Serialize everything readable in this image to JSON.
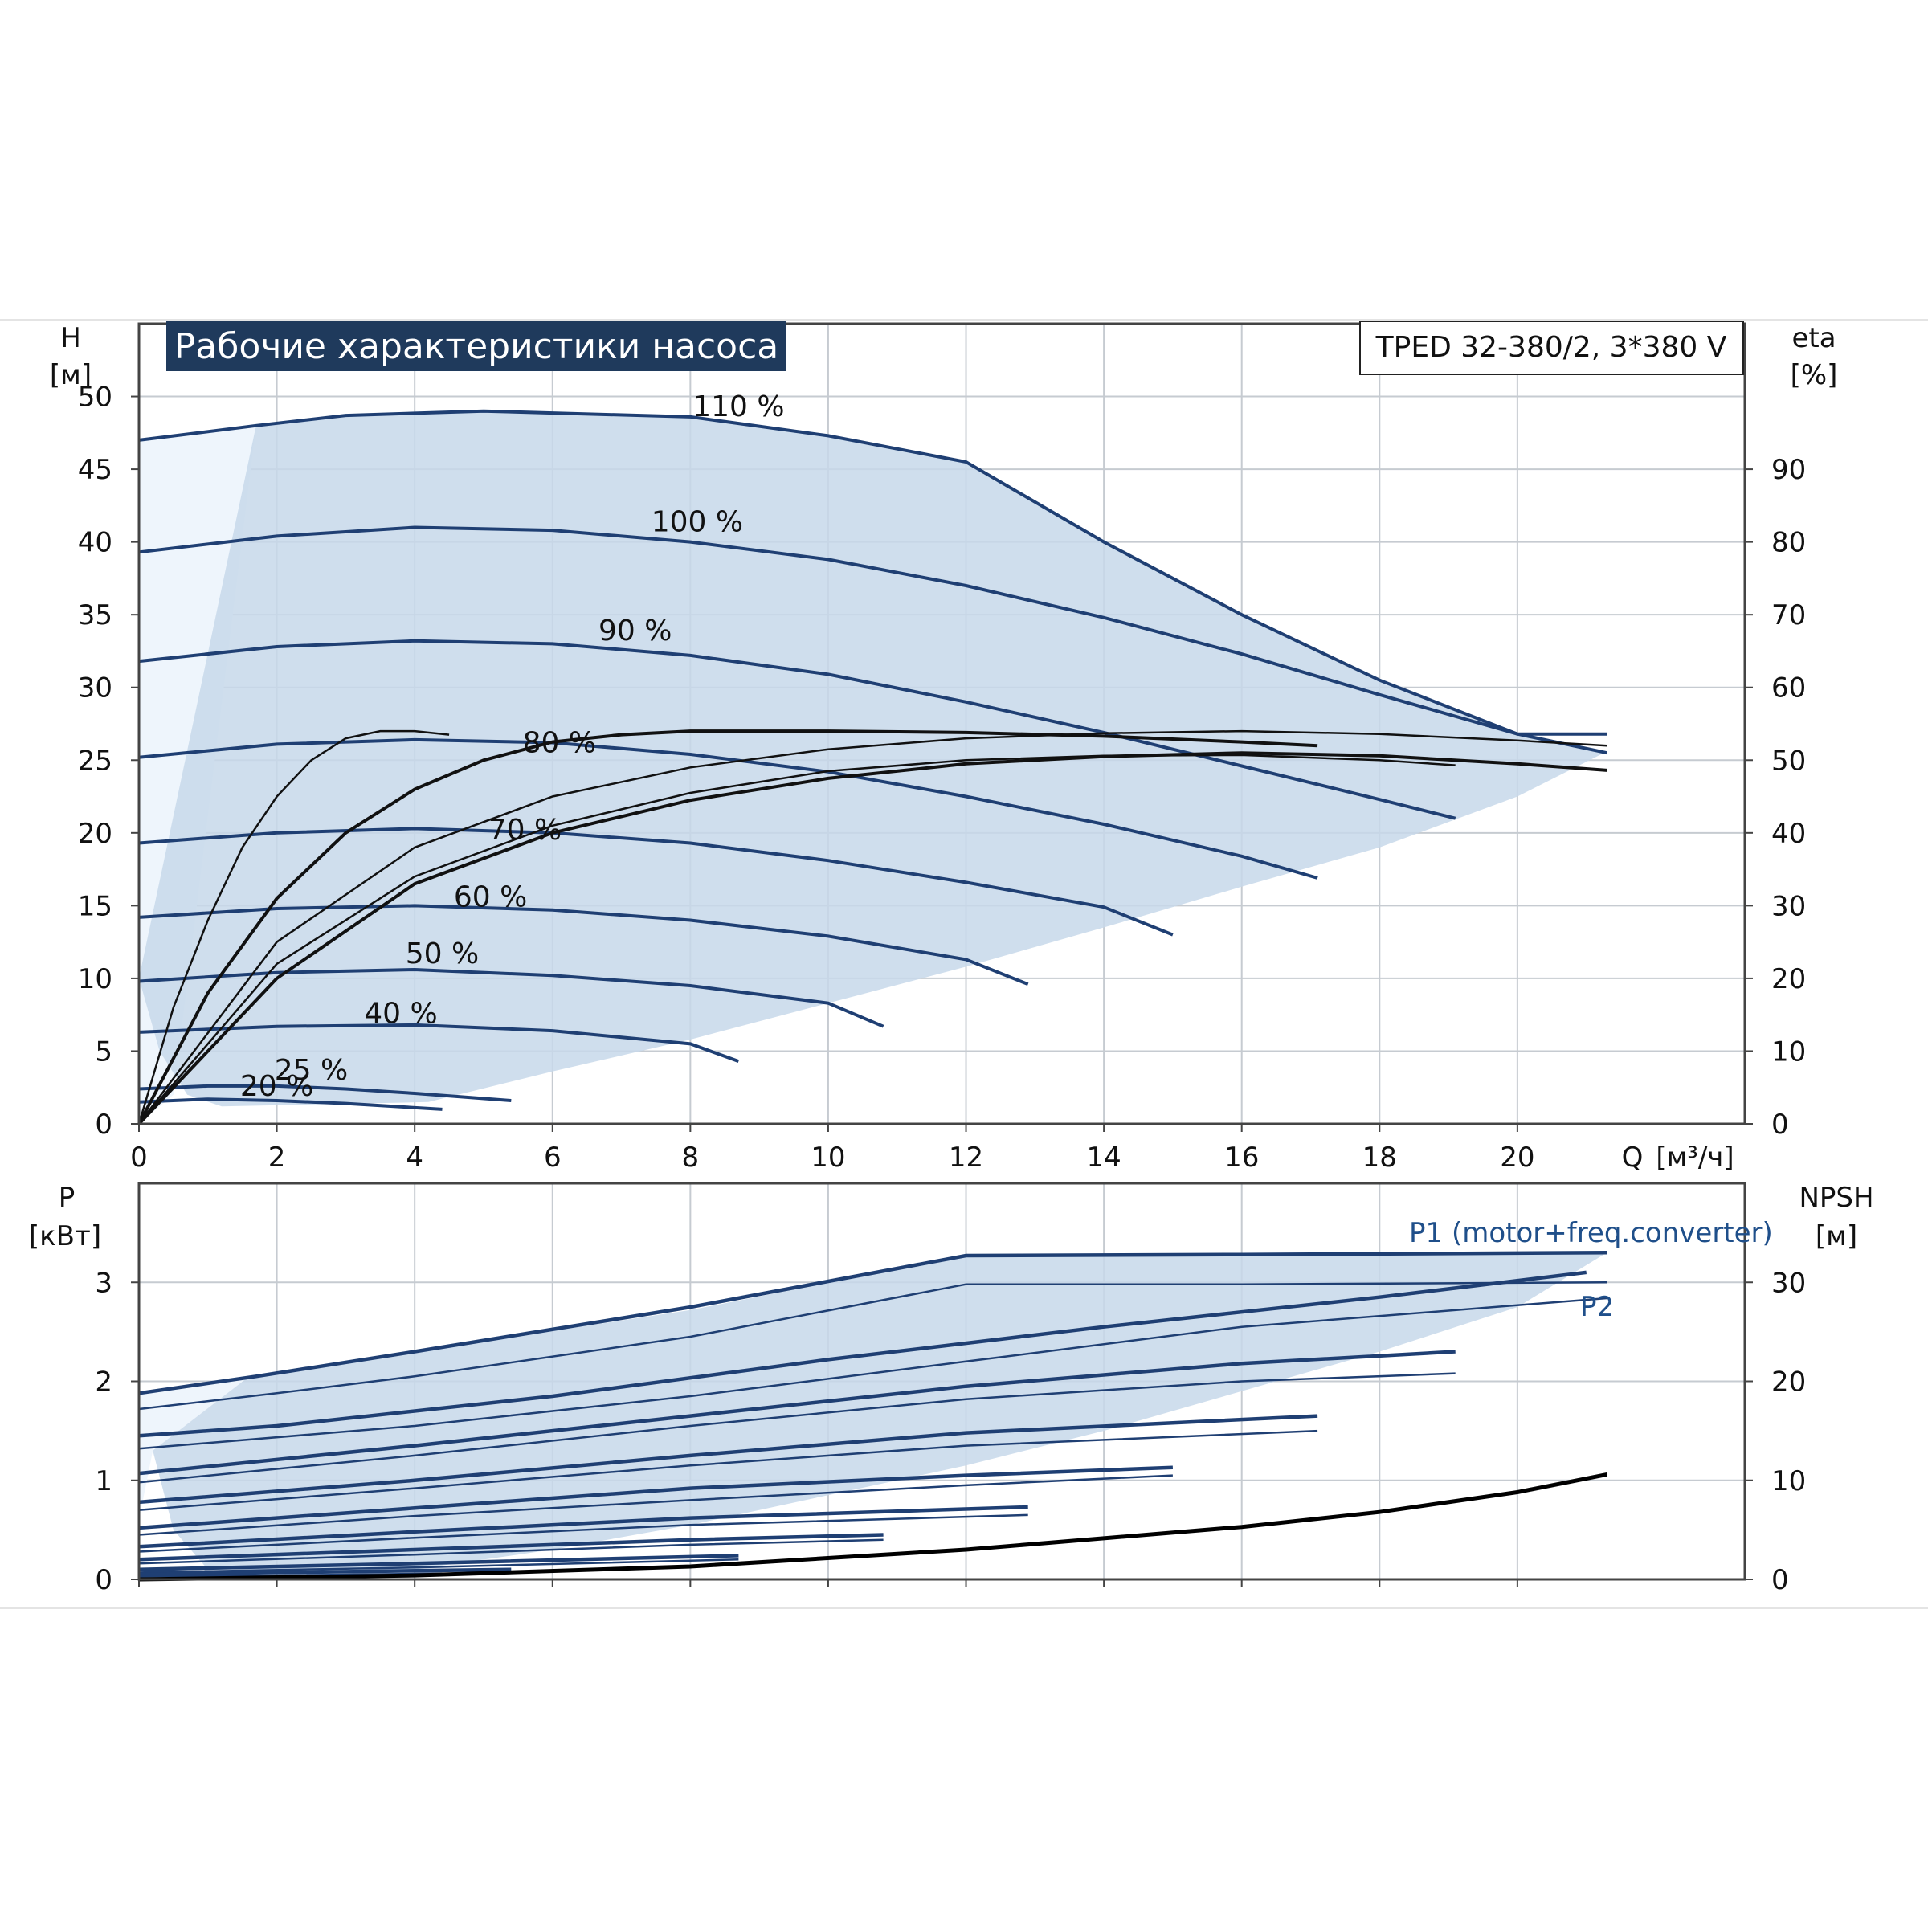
{
  "chart_data": [
    {
      "type": "line",
      "title": "Рабочие характеристики насоса",
      "model_label": "TPED 32-380/2, 3*380 V",
      "ylabel": "H",
      "ylabel_unit": "[м]",
      "y2label": "eta",
      "y2label_unit": "[%]",
      "xlabel": "Q",
      "xlabel_unit": "[м³/ч]",
      "xlim": [
        0,
        23.3
      ],
      "ylim": [
        0,
        55
      ],
      "y2lim": [
        0,
        110
      ],
      "xticks": [
        "0",
        "2",
        "4",
        "6",
        "8",
        "10",
        "12",
        "14",
        "16",
        "18",
        "20"
      ],
      "yticks": [
        "0",
        "5",
        "10",
        "15",
        "20",
        "25",
        "30",
        "35",
        "40",
        "45",
        "50"
      ],
      "y2ticks": [
        "0",
        "10",
        "20",
        "30",
        "40",
        "50",
        "60",
        "70",
        "80",
        "90"
      ],
      "grid": true,
      "operating_range": {
        "upper": [
          [
            1.7,
            48
          ],
          [
            3,
            48.7
          ],
          [
            5,
            49
          ],
          [
            8,
            48.6
          ],
          [
            10,
            47.3
          ],
          [
            12,
            45.5
          ],
          [
            14,
            40
          ],
          [
            16,
            35
          ],
          [
            18,
            30.5
          ],
          [
            20,
            26.8
          ],
          [
            21.3,
            25.6
          ]
        ],
        "lower": [
          [
            21.3,
            25.6
          ],
          [
            20,
            22.5
          ],
          [
            18,
            19
          ],
          [
            16,
            16.3
          ],
          [
            14,
            13.5
          ],
          [
            12,
            10.8
          ],
          [
            10,
            8.3
          ],
          [
            8,
            5.8
          ],
          [
            6,
            3.6
          ],
          [
            4.2,
            1.5
          ],
          [
            1.2,
            1.2
          ],
          [
            0.7,
            2
          ],
          [
            0.3,
            5
          ],
          [
            0,
            10
          ]
        ]
      },
      "head_curves": [
        {
          "label": "110 %",
          "q": [
            0,
            1.7,
            3,
            5,
            8,
            10,
            12,
            14,
            16,
            18,
            20,
            21.3
          ],
          "h": [
            47,
            48,
            48.7,
            49,
            48.6,
            47.3,
            45.5,
            40,
            35,
            30.5,
            26.8,
            26.8
          ]
        },
        {
          "label": "100 %",
          "q": [
            0,
            2,
            4,
            6,
            8,
            10,
            12,
            14,
            16,
            18,
            20,
            21.3
          ],
          "h": [
            39.3,
            40.4,
            41,
            40.8,
            40,
            38.8,
            37,
            34.8,
            32.3,
            29.5,
            26.8,
            25.5
          ]
        },
        {
          "label": "90 %",
          "q": [
            0,
            2,
            4,
            6,
            8,
            10,
            12,
            14,
            16,
            18,
            19.1
          ],
          "h": [
            31.8,
            32.8,
            33.2,
            33,
            32.2,
            30.9,
            29,
            26.9,
            24.6,
            22.3,
            21
          ]
        },
        {
          "label": "80 %",
          "q": [
            0,
            2,
            4,
            6,
            8,
            10,
            12,
            14,
            16,
            17.1
          ],
          "h": [
            25.2,
            26.1,
            26.4,
            26.2,
            25.4,
            24.2,
            22.5,
            20.6,
            18.4,
            16.9
          ]
        },
        {
          "label": "70 %",
          "q": [
            0,
            2,
            4,
            6,
            8,
            10,
            12,
            14,
            15
          ],
          "h": [
            19.3,
            20,
            20.3,
            20,
            19.3,
            18.1,
            16.6,
            14.9,
            13
          ]
        },
        {
          "label": "60 %",
          "q": [
            0,
            2,
            4,
            6,
            8,
            10,
            12,
            12.9
          ],
          "h": [
            14.2,
            14.8,
            15,
            14.7,
            14,
            12.9,
            11.3,
            9.6
          ]
        },
        {
          "label": "50 %",
          "q": [
            0,
            2,
            4,
            6,
            8,
            10,
            10.8
          ],
          "h": [
            9.8,
            10.4,
            10.6,
            10.2,
            9.5,
            8.3,
            6.7
          ]
        },
        {
          "label": "40 %",
          "q": [
            0,
            2,
            4,
            6,
            8,
            8.7
          ],
          "h": [
            6.3,
            6.7,
            6.8,
            6.4,
            5.5,
            4.3
          ]
        },
        {
          "label": "25 %",
          "q": [
            0,
            1,
            2,
            3,
            4,
            5.4
          ],
          "h": [
            2.4,
            2.6,
            2.6,
            2.4,
            2.1,
            1.6
          ]
        },
        {
          "label": "20 %",
          "q": [
            0,
            1,
            2,
            3,
            4.4
          ],
          "h": [
            1.5,
            1.7,
            1.6,
            1.4,
            1.0
          ]
        }
      ],
      "eta_curves": [
        {
          "q": [
            0,
            0.5,
            1,
            1.5,
            2,
            2.5,
            3,
            3.5,
            4,
            4.5
          ],
          "eta": [
            0,
            16,
            28,
            38,
            45,
            50,
            53,
            54,
            54,
            53.5
          ]
        },
        {
          "q": [
            0,
            1,
            2,
            3,
            4,
            5,
            6,
            7,
            8,
            9,
            10,
            12,
            14,
            16,
            17.1
          ],
          "eta": [
            0,
            18,
            31,
            40,
            46,
            50,
            52.5,
            53.5,
            54,
            54,
            54,
            53.8,
            53.3,
            52.5,
            52
          ]
        },
        {
          "q": [
            0,
            2,
            4,
            6,
            8,
            10,
            12,
            14,
            16,
            18,
            19.1
          ],
          "eta": [
            0,
            22,
            34,
            41,
            45.5,
            48.5,
            50,
            50.6,
            50.7,
            50,
            49.3
          ]
        },
        {
          "q": [
            0,
            2,
            4,
            6,
            8,
            10,
            12,
            14,
            16,
            18,
            20,
            21.3
          ],
          "eta": [
            0,
            20,
            33,
            40,
            44.5,
            47.5,
            49.5,
            50.5,
            51,
            50.6,
            49.5,
            48.6
          ]
        },
        {
          "q": [
            0,
            2,
            4,
            6,
            8,
            10,
            12,
            14,
            16,
            18,
            20,
            21.3
          ],
          "eta": [
            0,
            25,
            38,
            45,
            49,
            51.5,
            53,
            53.7,
            54,
            53.6,
            52.7,
            52
          ]
        }
      ]
    },
    {
      "type": "line",
      "ylabel": "P",
      "ylabel_unit": "[кВт]",
      "y2label": "NPSH",
      "y2label_unit": "[м]",
      "xlim": [
        0,
        23.3
      ],
      "ylim": [
        0,
        4
      ],
      "y2lim": [
        0,
        40
      ],
      "yticks": [
        "0",
        "1",
        "2",
        "3"
      ],
      "y2ticks": [
        "0",
        "10",
        "20",
        "30"
      ],
      "grid": true,
      "legend": [
        "P1 (motor+freq.converter)",
        "P2"
      ],
      "operating_range": {
        "upper": [
          [
            1.6,
            2.05
          ],
          [
            4,
            2.3
          ],
          [
            8,
            2.72
          ],
          [
            12,
            3.27
          ],
          [
            16,
            3.28
          ],
          [
            21.3,
            3.3
          ]
        ],
        "lower": [
          [
            21.3,
            3.3
          ],
          [
            20,
            2.75
          ],
          [
            18,
            2.3
          ],
          [
            16,
            1.9
          ],
          [
            14,
            1.5
          ],
          [
            12,
            1.15
          ],
          [
            10,
            0.85
          ],
          [
            8,
            0.55
          ],
          [
            6,
            0.3
          ],
          [
            4,
            0.1
          ],
          [
            1,
            0.1
          ],
          [
            0.5,
            0.5
          ],
          [
            0.2,
            1.3
          ]
        ]
      },
      "power_curves": [
        {
          "q": [
            0,
            1.7,
            4,
            8,
            12,
            16,
            21.3
          ],
          "p": [
            1.88,
            2.05,
            2.3,
            2.75,
            3.27,
            3.28,
            3.3
          ]
        },
        {
          "q": [
            0,
            2,
            4,
            8,
            12,
            16,
            21.3
          ],
          "p": [
            1.72,
            1.88,
            2.05,
            2.45,
            2.98,
            2.98,
            3.0
          ]
        },
        {
          "q": [
            0,
            2,
            6,
            10,
            14,
            18,
            21
          ],
          "p": [
            1.45,
            1.55,
            1.85,
            2.22,
            2.55,
            2.85,
            3.1
          ]
        },
        {
          "q": [
            0,
            4,
            8,
            12,
            16,
            21.3
          ],
          "p": [
            1.32,
            1.55,
            1.85,
            2.2,
            2.55,
            2.84
          ]
        },
        {
          "q": [
            0,
            4,
            8,
            12,
            16,
            19.1
          ],
          "p": [
            1.07,
            1.35,
            1.65,
            1.95,
            2.18,
            2.3
          ]
        },
        {
          "q": [
            0,
            4,
            8,
            12,
            16,
            19.1
          ],
          "p": [
            0.98,
            1.25,
            1.55,
            1.82,
            2.0,
            2.08
          ]
        },
        {
          "q": [
            0,
            4,
            8,
            12,
            17.1
          ],
          "p": [
            0.78,
            1.0,
            1.25,
            1.48,
            1.65
          ]
        },
        {
          "q": [
            0,
            4,
            8,
            12,
            17.1
          ],
          "p": [
            0.7,
            0.92,
            1.15,
            1.35,
            1.5
          ]
        },
        {
          "q": [
            0,
            4,
            8,
            12,
            15
          ],
          "p": [
            0.52,
            0.72,
            0.92,
            1.05,
            1.13
          ]
        },
        {
          "q": [
            0,
            4,
            8,
            12,
            15
          ],
          "p": [
            0.45,
            0.64,
            0.8,
            0.95,
            1.05
          ]
        },
        {
          "q": [
            0,
            4,
            8,
            12.9
          ],
          "p": [
            0.33,
            0.48,
            0.62,
            0.73
          ]
        },
        {
          "q": [
            0,
            4,
            8,
            12.9
          ],
          "p": [
            0.28,
            0.42,
            0.55,
            0.65
          ]
        },
        {
          "q": [
            0,
            4,
            8,
            10.8
          ],
          "p": [
            0.2,
            0.3,
            0.4,
            0.45
          ]
        },
        {
          "q": [
            0,
            4,
            8,
            10.8
          ],
          "p": [
            0.16,
            0.25,
            0.35,
            0.4
          ]
        },
        {
          "q": [
            0,
            4,
            8.7
          ],
          "p": [
            0.1,
            0.16,
            0.24
          ]
        },
        {
          "q": [
            0,
            4,
            8.7
          ],
          "p": [
            0.07,
            0.12,
            0.2
          ]
        },
        {
          "q": [
            0,
            2,
            5.4
          ],
          "p": [
            0.05,
            0.07,
            0.1
          ]
        },
        {
          "q": [
            0,
            2,
            4.4
          ],
          "p": [
            0.03,
            0.04,
            0.06
          ]
        }
      ],
      "npsh_curve": {
        "q": [
          0,
          4,
          8,
          12,
          16,
          18,
          20,
          21.3
        ],
        "npsh": [
          0,
          0.4,
          1.3,
          3.0,
          5.3,
          6.8,
          8.8,
          10.6
        ]
      }
    }
  ]
}
